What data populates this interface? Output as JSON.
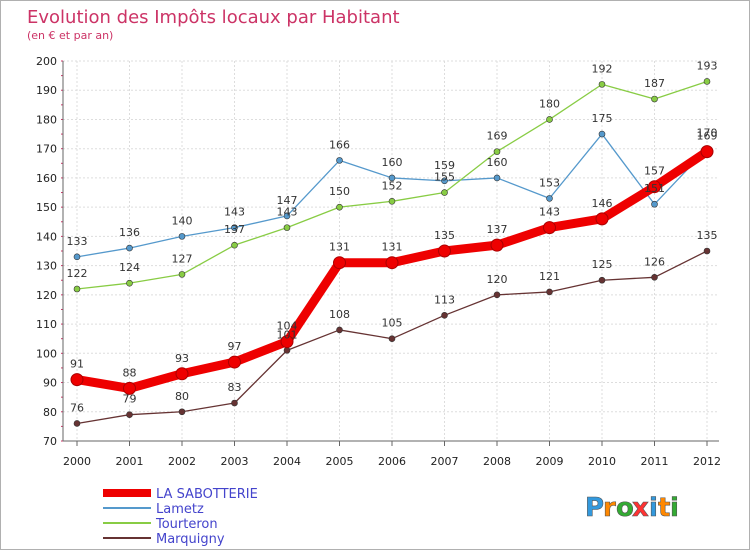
{
  "chart_data": {
    "type": "line",
    "title": "Evolution des Impôts locaux par Habitant",
    "subtitle": "(en € et par an)",
    "x": [
      "2000",
      "2001",
      "2002",
      "2003",
      "2004",
      "2005",
      "2006",
      "2007",
      "2008",
      "2009",
      "2010",
      "2011",
      "2012"
    ],
    "ylim": [
      70,
      200
    ],
    "yticks": [
      70,
      80,
      90,
      100,
      110,
      120,
      130,
      140,
      150,
      160,
      170,
      180,
      190,
      200
    ],
    "grid": true,
    "legend_position": "bottom-left",
    "series": [
      {
        "name": "LA SABOTTERIE",
        "color": "#ee0000",
        "values": [
          91,
          88,
          93,
          97,
          104,
          131,
          131,
          135,
          137,
          143,
          146,
          157,
          169
        ]
      },
      {
        "name": "Lametz",
        "color": "#5599cc",
        "values": [
          133,
          136,
          140,
          143,
          147,
          166,
          160,
          159,
          160,
          153,
          175,
          151,
          170
        ]
      },
      {
        "name": "Tourteron",
        "color": "#88cc44",
        "values": [
          122,
          124,
          127,
          137,
          143,
          150,
          152,
          155,
          169,
          180,
          192,
          187,
          193
        ]
      },
      {
        "name": "Marquigny",
        "color": "#663333",
        "values": [
          76,
          79,
          80,
          83,
          101,
          108,
          105,
          113,
          120,
          121,
          125,
          126,
          135
        ]
      }
    ],
    "data_labels": [
      [
        "91",
        "88",
        "93",
        "97",
        "104",
        "131",
        "131",
        "135",
        "137",
        "143",
        "146",
        "157",
        "169"
      ],
      [
        "133",
        "136",
        "140",
        "143",
        "147",
        "166",
        "160",
        "159",
        "160",
        "153",
        "175",
        "151",
        "170"
      ],
      [
        "122",
        "124",
        "127",
        "137",
        "143",
        "150",
        "152",
        "155",
        "169",
        "180",
        "192",
        "187",
        "193"
      ],
      [
        "76",
        "79",
        "80",
        "83",
        "101",
        "108",
        "105",
        "113",
        "120",
        "121",
        "125",
        "126",
        "135"
      ]
    ]
  },
  "logo": {
    "letters": [
      "P",
      "r",
      "o",
      "x",
      "i",
      "t",
      "i"
    ],
    "colors": [
      "#3399dd",
      "#ff8800",
      "#33aa33",
      "#ff3333",
      "#3399dd",
      "#ff8800",
      "#33aa33"
    ]
  }
}
